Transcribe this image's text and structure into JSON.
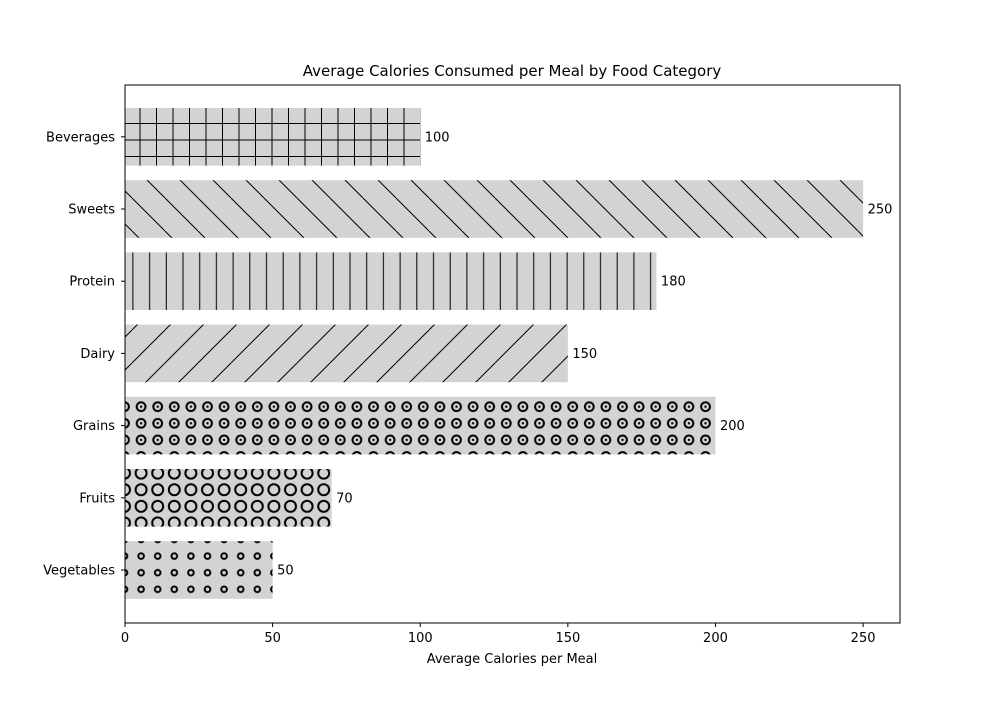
{
  "chart_data": {
    "type": "bar",
    "orientation": "horizontal",
    "title": "Average Calories Consumed per Meal by Food Category",
    "xlabel": "Average Calories per Meal",
    "ylabel": "",
    "categories": [
      "Vegetables",
      "Fruits",
      "Grains",
      "Dairy",
      "Protein",
      "Sweets",
      "Beverages"
    ],
    "values": [
      50,
      70,
      200,
      150,
      180,
      250,
      100
    ],
    "value_labels": [
      "50",
      "70",
      "200",
      "150",
      "180",
      "250",
      "100"
    ],
    "hatches": [
      "small-circles",
      "circles",
      "dotted-circles",
      "forward-diagonal",
      "vertical",
      "back-diagonal",
      "grid"
    ],
    "xlim": [
      0,
      262.5
    ],
    "xticks": [
      0,
      50,
      100,
      150,
      200,
      250
    ],
    "xtick_labels": [
      "0",
      "50",
      "100",
      "150",
      "200",
      "250"
    ],
    "grid": false,
    "bar_color": "#d3d3d3",
    "edge_color": "#000000"
  }
}
